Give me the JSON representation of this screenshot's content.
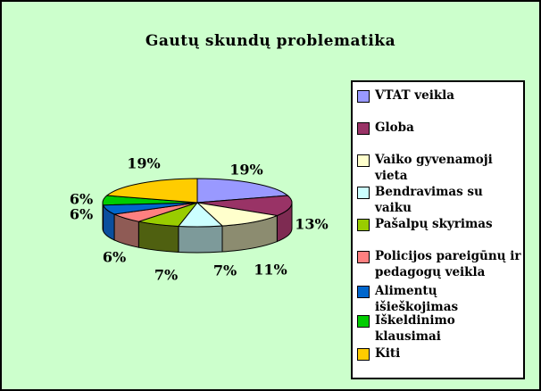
{
  "window": {
    "background": "#CCFFCC",
    "border_color": "#000000",
    "legend_background": "#FFFFFF"
  },
  "chart_data": {
    "type": "pie",
    "effect": "3d",
    "title": "Gautų skundų problematika",
    "unit": "%",
    "legend_position": "right",
    "labels_shown": true,
    "slices": [
      {
        "label": "VTAT veikla",
        "value": 19,
        "display": "19%",
        "color": "#9999FF",
        "side_color": "#5C5C99"
      },
      {
        "label": "Globa",
        "value": 13,
        "display": "13%",
        "color": "#993366",
        "side_color": "#7E2B52"
      },
      {
        "label": "Vaiko gyvenamoji vieta",
        "value": 11,
        "display": "11%",
        "color": "#FFFFCC",
        "side_color": "#8C8C70"
      },
      {
        "label": "Bendravimas su vaiku",
        "value": 7,
        "display": "7%",
        "color": "#CCFFFF",
        "side_color": "#7D9A9A"
      },
      {
        "label": "Pašalpų skyrimas",
        "value": 7,
        "display": "7%",
        "color": "#99CC00",
        "side_color": "#4F6010"
      },
      {
        "label": "Policijos pareigūnų ir pedagogų veikla",
        "value": 6,
        "display": "6%",
        "color": "#FF8080",
        "side_color": "#8F5B55"
      },
      {
        "label": "Alimentų išieškojimas",
        "value": 6,
        "display": "6%",
        "color": "#0066CC",
        "side_color": "#0A4F9E"
      },
      {
        "label": "Iškeldinimo klausimai",
        "value": 6,
        "display": "6%",
        "color": "#00CC00",
        "side_color": "#0E7A0E"
      },
      {
        "label": "Kiti",
        "value": 19,
        "display": "19%",
        "color": "#FFCC00",
        "side_color": "#997A00"
      }
    ]
  }
}
